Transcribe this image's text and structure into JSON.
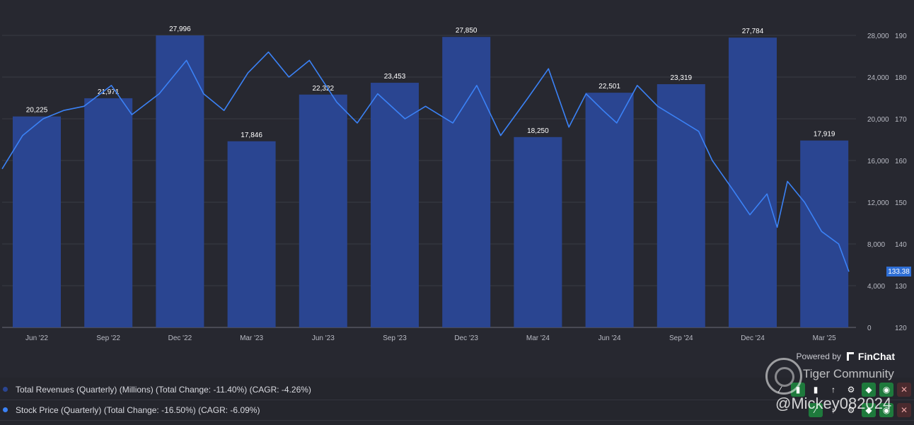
{
  "chart_data": {
    "type": "bar",
    "categories": [
      "Jun '22",
      "Sep '22",
      "Dec '22",
      "Mar '23",
      "Jun '23",
      "Sep '23",
      "Dec '23",
      "Mar '24",
      "Jun '24",
      "Sep '24",
      "Dec '24",
      "Mar '25"
    ],
    "series": [
      {
        "name": "Total Revenues (Quarterly) (Millions)",
        "type": "bar",
        "axis": "left",
        "values": [
          20225,
          21971,
          27996,
          17846,
          22322,
          23453,
          27850,
          18250,
          22501,
          23319,
          27784,
          17919
        ],
        "labels": [
          "20,225",
          "21,971",
          "27,996",
          "17,846",
          "22,322",
          "23,453",
          "27,850",
          "18,250",
          "22,501",
          "23,319",
          "27,784",
          "17,919"
        ],
        "color": "#2a4591"
      },
      {
        "name": "Stock Price (Quarterly)",
        "type": "line",
        "axis": "right",
        "color": "#3b82f6",
        "points": [
          [
            0,
            158
          ],
          [
            0.3,
            166
          ],
          [
            0.6,
            170
          ],
          [
            0.9,
            172
          ],
          [
            1.2,
            173
          ],
          [
            1.6,
            178
          ],
          [
            1.9,
            171
          ],
          [
            2.3,
            176
          ],
          [
            2.7,
            184
          ],
          [
            2.95,
            176
          ],
          [
            3.25,
            172
          ],
          [
            3.6,
            181
          ],
          [
            3.9,
            186
          ],
          [
            4.2,
            180
          ],
          [
            4.5,
            184
          ],
          [
            4.9,
            174
          ],
          [
            5.2,
            169
          ],
          [
            5.5,
            176
          ],
          [
            5.9,
            170
          ],
          [
            6.2,
            173
          ],
          [
            6.6,
            169
          ],
          [
            6.95,
            178
          ],
          [
            7.3,
            166
          ],
          [
            7.7,
            175
          ],
          [
            8.0,
            182
          ],
          [
            8.3,
            168
          ],
          [
            8.55,
            176
          ],
          [
            8.8,
            172
          ],
          [
            9.0,
            169
          ],
          [
            9.3,
            178
          ],
          [
            9.6,
            173
          ],
          [
            9.9,
            170
          ],
          [
            10.2,
            167
          ],
          [
            10.4,
            160
          ],
          [
            10.7,
            153
          ],
          [
            10.95,
            147
          ],
          [
            11.2,
            152
          ],
          [
            11.35,
            144
          ],
          [
            11.5,
            155
          ],
          [
            11.75,
            150
          ],
          [
            12.0,
            143
          ],
          [
            12.25,
            140
          ],
          [
            12.4,
            133.38
          ]
        ],
        "last": "133.38"
      }
    ],
    "y_left": {
      "ticks": [
        "0",
        "4,000",
        "8,000",
        "12,000",
        "16,000",
        "20,000",
        "24,000",
        "28,000"
      ],
      "range": [
        0,
        28000
      ]
    },
    "y_right": {
      "ticks": [
        "120",
        "130",
        "140",
        "150",
        "160",
        "170",
        "180",
        "190"
      ],
      "range": [
        120,
        190
      ]
    },
    "grid": true
  },
  "branding": {
    "powered_by": "Powered by",
    "brand": "FinChat"
  },
  "legend": [
    {
      "text": "Total Revenues (Quarterly) (Millions) (Total Change: -11.40%) (CAGR: -4.26%)",
      "color": "#2a4591"
    },
    {
      "text": "Stock Price (Quarterly) (Total Change: -16.50%) (CAGR: -6.09%)",
      "color": "#3b82f6"
    }
  ],
  "watermark": {
    "community": "Tiger Community",
    "user": "@Mickey082024"
  },
  "price_badge": "133.38"
}
